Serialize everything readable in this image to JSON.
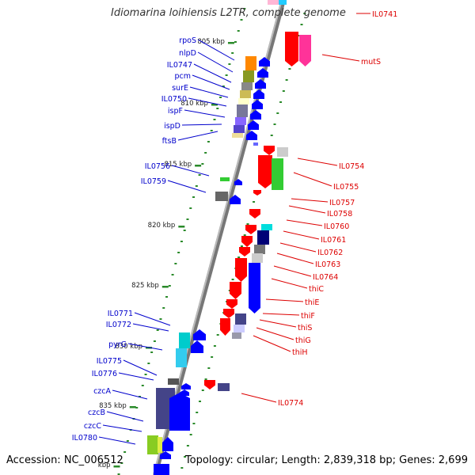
{
  "title": "Idiomarina loihiensis L2TR, complete genome",
  "accession": "Accession: NC_006512",
  "topology": "Topology: circular; Length: 2,839,318 bp; Genes: 2,699",
  "colors": {
    "backbone": "#888888",
    "left_label": "#0000cc",
    "right_label": "#dd0000",
    "tick": "#2a8a2a",
    "kbp_text": "#222222"
  },
  "kbp_marks": [
    {
      "label": "805 kbp"
    },
    {
      "label": "810 kbp"
    },
    {
      "label": "815 kbp"
    },
    {
      "label": "820 kbp"
    },
    {
      "label": "825 kbp"
    },
    {
      "label": "830 kbp"
    },
    {
      "label": "835 kbp"
    },
    {
      "label": "kbp"
    }
  ],
  "left_genes": [
    {
      "name": "rpoS"
    },
    {
      "name": "nlpD"
    },
    {
      "name": "IL0747"
    },
    {
      "name": "pcm"
    },
    {
      "name": "surE"
    },
    {
      "name": "IL0750"
    },
    {
      "name": "ispF"
    },
    {
      "name": "ispD"
    },
    {
      "name": "ftsB"
    },
    {
      "name": "IL0756"
    },
    {
      "name": "IL0759"
    },
    {
      "name": "IL0771"
    },
    {
      "name": "IL0772"
    },
    {
      "name": "pyrG"
    },
    {
      "name": "IL0775"
    },
    {
      "name": "IL0776"
    },
    {
      "name": "czcA"
    },
    {
      "name": "czcB"
    },
    {
      "name": "czcC"
    },
    {
      "name": "IL0780"
    }
  ],
  "right_genes": [
    {
      "name": "IL0741"
    },
    {
      "name": "mutS"
    },
    {
      "name": "IL0754"
    },
    {
      "name": "IL0755"
    },
    {
      "name": "IL0757"
    },
    {
      "name": "IL0758"
    },
    {
      "name": "IL0760"
    },
    {
      "name": "IL0761"
    },
    {
      "name": "IL0762"
    },
    {
      "name": "IL0763"
    },
    {
      "name": "IL0764"
    },
    {
      "name": "thiC"
    },
    {
      "name": "thiE"
    },
    {
      "name": "thiF"
    },
    {
      "name": "thiS"
    },
    {
      "name": "thiG"
    },
    {
      "name": "thiH"
    },
    {
      "name": "IL0774"
    }
  ]
}
